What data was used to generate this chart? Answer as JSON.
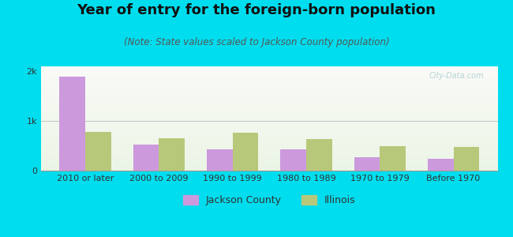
{
  "title": "Year of entry for the foreign-born population",
  "subtitle": "(Note: State values scaled to Jackson County population)",
  "categories": [
    "2010 or later",
    "2000 to 2009",
    "1990 to 1999",
    "1980 to 1989",
    "1970 to 1979",
    "Before 1970"
  ],
  "jackson_values": [
    1900,
    530,
    430,
    430,
    270,
    240
  ],
  "illinois_values": [
    780,
    660,
    760,
    640,
    490,
    470
  ],
  "jackson_color": "#cc99dd",
  "illinois_color": "#b8c87a",
  "background_outer": "#00ddee",
  "ylim": [
    0,
    2100
  ],
  "yticks": [
    0,
    1000,
    2000
  ],
  "ytick_labels": [
    "0",
    "1k",
    "2k"
  ],
  "bar_width": 0.35,
  "title_fontsize": 13,
  "subtitle_fontsize": 8.5,
  "tick_fontsize": 8,
  "legend_fontsize": 9
}
